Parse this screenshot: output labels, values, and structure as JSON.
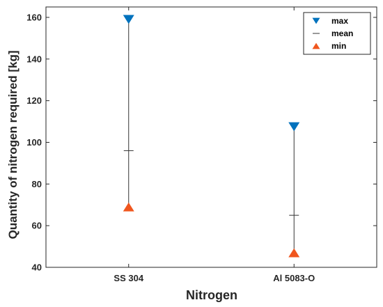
{
  "chart_data": {
    "type": "scatter",
    "xlabel": "Nitrogen",
    "ylabel": "Quantity of nitrogen required [kg]",
    "categories": [
      "SS 304",
      "Al 5083-O"
    ],
    "ylim": [
      40,
      165
    ],
    "yticks": [
      40,
      60,
      80,
      100,
      120,
      140,
      160
    ],
    "grid": false,
    "legend_position": "top-right",
    "series": [
      {
        "name": "max",
        "marker": "triangle-down",
        "color": "#0072BD",
        "values": [
          159,
          107.5
        ]
      },
      {
        "name": "mean",
        "marker": "horizontal-line",
        "color": "#333333",
        "values": [
          96,
          65
        ]
      },
      {
        "name": "min",
        "marker": "triangle-up",
        "color": "#F0561E",
        "values": [
          69,
          47
        ]
      }
    ]
  }
}
